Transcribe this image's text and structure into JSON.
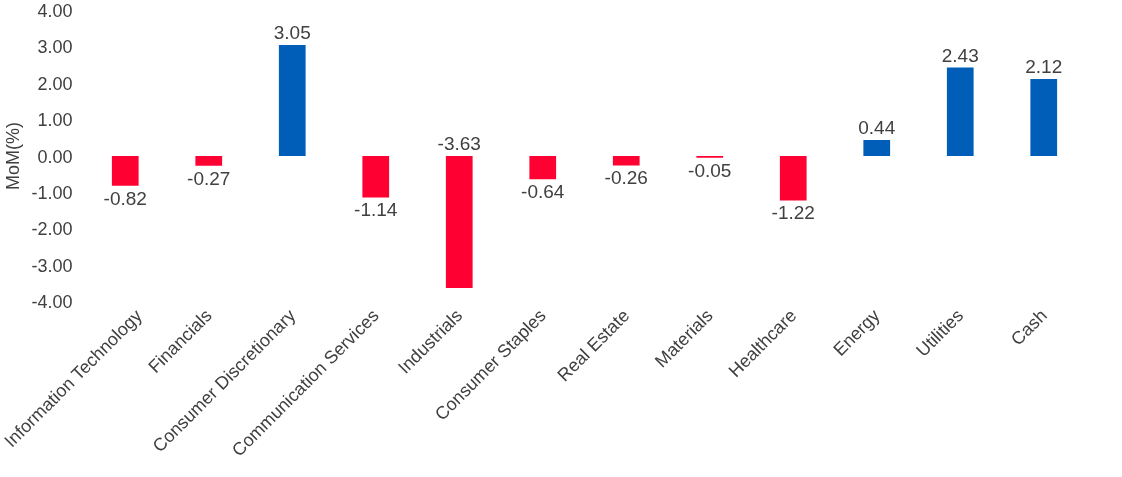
{
  "chart_data": {
    "type": "bar",
    "ylabel": "MoM(%)",
    "categories": [
      "Information Technology",
      "Financials",
      "Consumer Discretionary",
      "Communication Services",
      "Industrials",
      "Consumer Staples",
      "Real Estate",
      "Materials",
      "Healthcare",
      "Energy",
      "Utilities",
      "Cash"
    ],
    "values": [
      -0.82,
      -0.27,
      3.05,
      -1.14,
      -3.63,
      -0.64,
      -0.26,
      -0.05,
      -1.22,
      0.44,
      2.43,
      2.12
    ],
    "value_labels": [
      "-0.82",
      "-0.27",
      "3.05",
      "-1.14",
      "-3.63",
      "-0.64",
      "-0.26",
      "-0.05",
      "-1.22",
      "0.44",
      "2.43",
      "2.12"
    ],
    "colors": [
      "#ff0033",
      "#ff0033",
      "#005eb8",
      "#ff0033",
      "#ff0033",
      "#ff0033",
      "#ff0033",
      "#ff0033",
      "#ff0033",
      "#005eb8",
      "#005eb8",
      "#005eb8"
    ],
    "ylim": [
      -4,
      4
    ],
    "yticks": [
      {
        "value": -4,
        "label": "-4.00"
      },
      {
        "value": -3,
        "label": "-3.00"
      },
      {
        "value": -2,
        "label": "-2.00"
      },
      {
        "value": -1,
        "label": "-1.00"
      },
      {
        "value": 0,
        "label": "0.00"
      },
      {
        "value": 1,
        "label": "1.00"
      },
      {
        "value": 2,
        "label": "2.00"
      },
      {
        "value": 3,
        "label": "3.00"
      },
      {
        "value": 4,
        "label": "4.00"
      }
    ],
    "grid": false
  }
}
